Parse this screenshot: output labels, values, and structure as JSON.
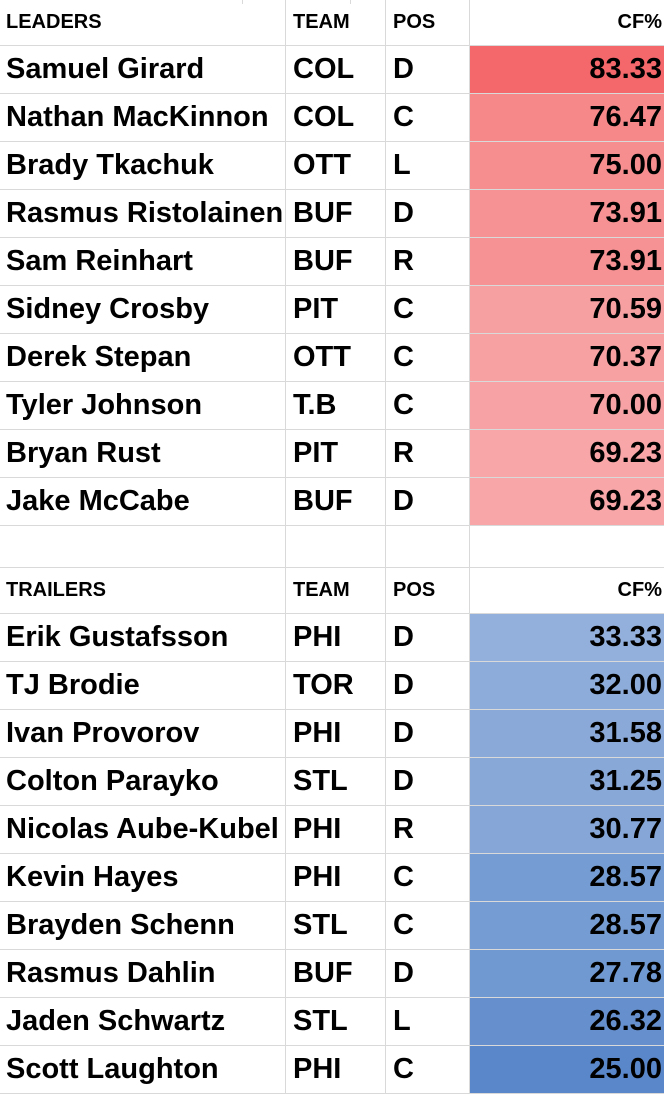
{
  "leaders": {
    "header": {
      "name": "LEADERS",
      "team": "TEAM",
      "pos": "POS",
      "cf": "CF%"
    },
    "rows": [
      {
        "name": "Samuel Girard",
        "team": "COL",
        "pos": "D",
        "cf": "83.33",
        "color": "#f4676a"
      },
      {
        "name": "Nathan MacKinnon",
        "team": "COL",
        "pos": "C",
        "cf": "76.47",
        "color": "#f6888a"
      },
      {
        "name": "Brady Tkachuk",
        "team": "OTT",
        "pos": "L",
        "cf": "75.00",
        "color": "#f68d8f"
      },
      {
        "name": "Rasmus Ristolainen",
        "team": "BUF",
        "pos": "D",
        "cf": "73.91",
        "color": "#f79294"
      },
      {
        "name": "Sam Reinhart",
        "team": "BUF",
        "pos": "R",
        "cf": "73.91",
        "color": "#f79294"
      },
      {
        "name": "Sidney Crosby",
        "team": "PIT",
        "pos": "C",
        "cf": "70.59",
        "color": "#f7a0a2"
      },
      {
        "name": "Derek Stepan",
        "team": "OTT",
        "pos": "C",
        "cf": "70.37",
        "color": "#f7a1a3"
      },
      {
        "name": "Tyler Johnson",
        "team": "T.B",
        "pos": "C",
        "cf": "70.00",
        "color": "#f7a3a5"
      },
      {
        "name": "Bryan Rust",
        "team": "PIT",
        "pos": "R",
        "cf": "69.23",
        "color": "#f8a6a8"
      },
      {
        "name": "Jake McCabe",
        "team": "BUF",
        "pos": "D",
        "cf": "69.23",
        "color": "#f8a6a8"
      }
    ]
  },
  "trailers": {
    "header": {
      "name": "TRAILERS",
      "team": "TEAM",
      "pos": "POS",
      "cf": "CF%"
    },
    "rows": [
      {
        "name": "Erik Gustafsson",
        "team": "PHI",
        "pos": "D",
        "cf": "33.33",
        "color": "#93b0dc"
      },
      {
        "name": "TJ Brodie",
        "team": "TOR",
        "pos": "D",
        "cf": "32.00",
        "color": "#8dacda"
      },
      {
        "name": "Ivan Provorov",
        "team": "PHI",
        "pos": "D",
        "cf": "31.58",
        "color": "#8aa9d9"
      },
      {
        "name": "Colton Parayko",
        "team": "STL",
        "pos": "D",
        "cf": "31.25",
        "color": "#88a8d8"
      },
      {
        "name": "Nicolas Aube-Kubel",
        "team": "PHI",
        "pos": "R",
        "cf": "30.77",
        "color": "#85a6d7"
      },
      {
        "name": "Kevin Hayes",
        "team": "PHI",
        "pos": "C",
        "cf": "28.57",
        "color": "#769dd3"
      },
      {
        "name": "Brayden Schenn",
        "team": "STL",
        "pos": "C",
        "cf": "28.57",
        "color": "#769dd3"
      },
      {
        "name": "Rasmus Dahlin",
        "team": "BUF",
        "pos": "D",
        "cf": "27.78",
        "color": "#7099d1"
      },
      {
        "name": "Jaden Schwartz",
        "team": "STL",
        "pos": "L",
        "cf": "26.32",
        "color": "#668fcd"
      },
      {
        "name": "Scott Laughton",
        "team": "PHI",
        "pos": "C",
        "cf": "25.00",
        "color": "#5a87c9"
      }
    ]
  }
}
